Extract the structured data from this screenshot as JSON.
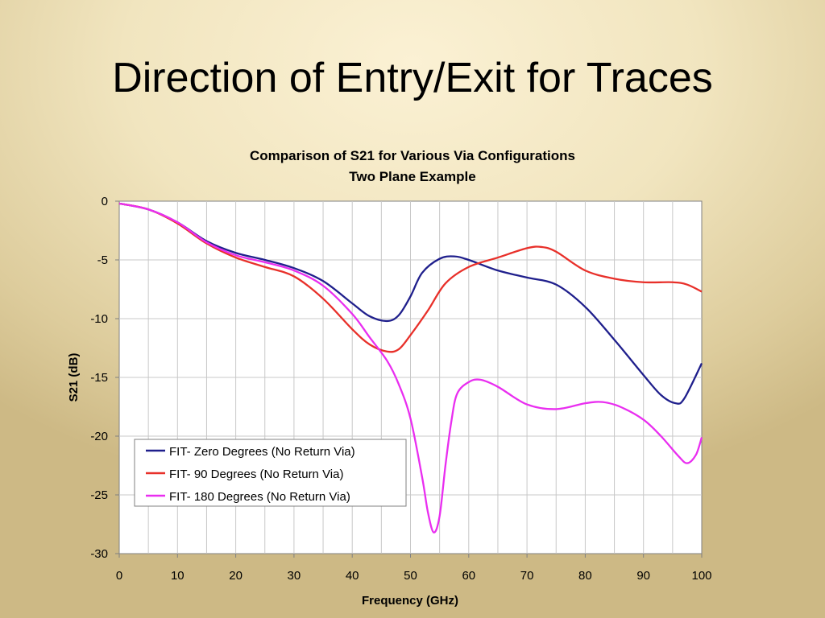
{
  "slide": {
    "title": "Direction of Entry/Exit for Traces"
  },
  "chart_data": {
    "type": "line",
    "title": "Comparison of S21 for Various Via Configurations",
    "subtitle": "Two Plane Example",
    "xlabel": "Frequency (GHz)",
    "ylabel": "S21 (dB)",
    "xlim": [
      0,
      100
    ],
    "ylim": [
      -30,
      0
    ],
    "x_ticks": [
      0,
      10,
      20,
      30,
      40,
      50,
      60,
      70,
      80,
      90,
      100
    ],
    "y_ticks": [
      0,
      -5,
      -10,
      -15,
      -20,
      -25,
      -30
    ],
    "grid": true,
    "legend_position": "bottom-left",
    "series": [
      {
        "name": "FIT- Zero Degrees (No Return Via)",
        "color": "#1f1f8c",
        "x": [
          0,
          5,
          10,
          15,
          20,
          25,
          30,
          35,
          40,
          43,
          46,
          48,
          50,
          52,
          55,
          57.5,
          60,
          65,
          70,
          75,
          80,
          85,
          90,
          93,
          95.5,
          97,
          100
        ],
        "y": [
          -0.2,
          -0.7,
          -1.8,
          -3.4,
          -4.4,
          -5.0,
          -5.7,
          -6.8,
          -8.7,
          -9.8,
          -10.2,
          -9.7,
          -8.1,
          -6.1,
          -4.9,
          -4.7,
          -5.0,
          -5.9,
          -6.5,
          -7.1,
          -9.0,
          -11.8,
          -14.8,
          -16.5,
          -17.2,
          -16.8,
          -13.8
        ]
      },
      {
        "name": "FIT- 90 Degrees (No Return Via)",
        "color": "#e8302a",
        "x": [
          0,
          5,
          10,
          15,
          20,
          25,
          30,
          35,
          40,
          43,
          46,
          48,
          50,
          53,
          56,
          60,
          65,
          70,
          72.5,
          75,
          80,
          85,
          90,
          95,
          97.5,
          100
        ],
        "y": [
          -0.2,
          -0.7,
          -1.9,
          -3.6,
          -4.8,
          -5.6,
          -6.4,
          -8.3,
          -10.9,
          -12.2,
          -12.8,
          -12.6,
          -11.4,
          -9.3,
          -7.0,
          -5.6,
          -4.8,
          -4.0,
          -3.9,
          -4.3,
          -5.9,
          -6.6,
          -6.9,
          -6.9,
          -7.1,
          -7.7
        ]
      },
      {
        "name": "FIT- 180 Degrees (No Return Via)",
        "color": "#e92ef0",
        "x": [
          0,
          5,
          10,
          15,
          20,
          25,
          30,
          35,
          40,
          43,
          46,
          48,
          50,
          52,
          53,
          54,
          55,
          56,
          57,
          58,
          60,
          62,
          65,
          70,
          75,
          80,
          83,
          86,
          90,
          93,
          96,
          97.5,
          99,
          100
        ],
        "y": [
          -0.2,
          -0.7,
          -1.8,
          -3.5,
          -4.6,
          -5.2,
          -5.9,
          -7.2,
          -9.6,
          -11.6,
          -13.6,
          -15.6,
          -18.5,
          -23.5,
          -26.5,
          -28.2,
          -26.8,
          -22.5,
          -18.8,
          -16.4,
          -15.4,
          -15.2,
          -15.8,
          -17.3,
          -17.7,
          -17.2,
          -17.1,
          -17.5,
          -18.6,
          -20.0,
          -21.7,
          -22.3,
          -21.6,
          -20.1
        ]
      }
    ]
  }
}
